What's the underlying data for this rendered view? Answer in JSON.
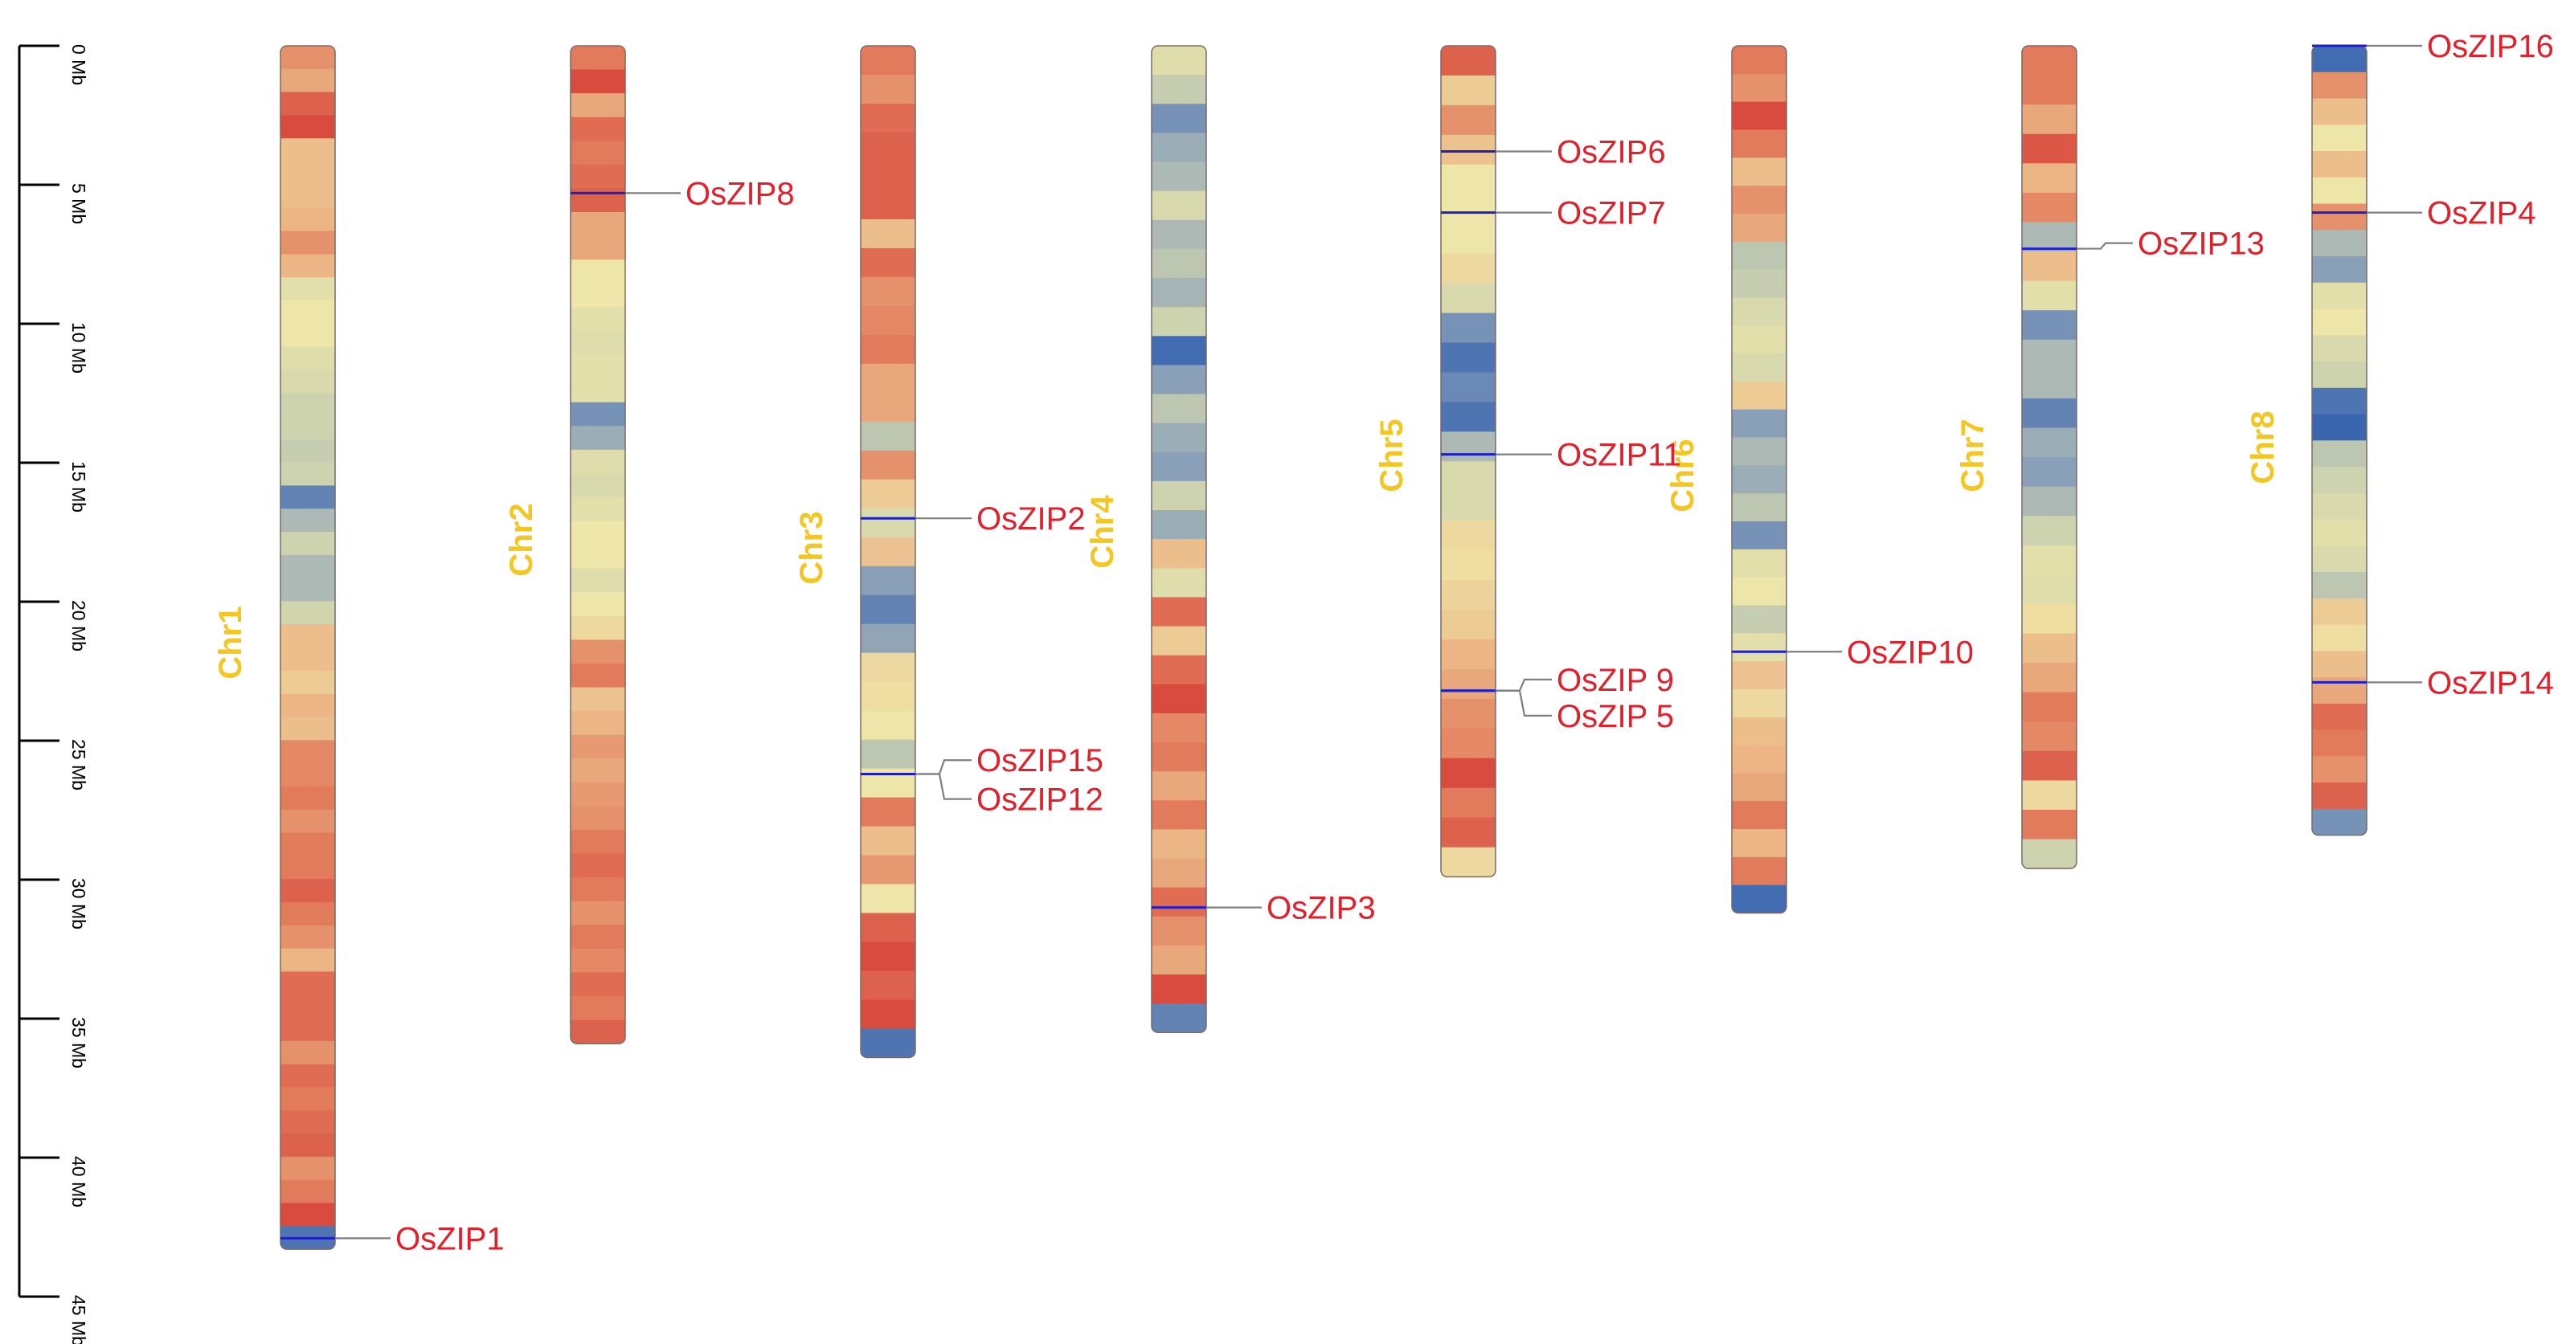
{
  "axis": {
    "unit": "Mb",
    "ticks": [
      {
        "value": 0,
        "label": "0 Mb"
      },
      {
        "value": 5,
        "label": "5 Mb"
      },
      {
        "value": 10,
        "label": "10 Mb"
      },
      {
        "value": 15,
        "label": "15 Mb"
      },
      {
        "value": 20,
        "label": "20 Mb"
      },
      {
        "value": 25,
        "label": "25 Mb"
      },
      {
        "value": 30,
        "label": "30 Mb"
      },
      {
        "value": 35,
        "label": "35 Mb"
      },
      {
        "value": 40,
        "label": "40 Mb"
      },
      {
        "value": 45,
        "label": "45 Mb"
      }
    ]
  },
  "colors": {
    "chromosome_label": "#F2C624",
    "gene_label": "#E0202A",
    "gene_marker": "#1F1FC8",
    "leader_line": "#7F7F7F",
    "axis": "#000000"
  },
  "chromosomes": [
    {
      "name": "Chr1",
      "length_mb": 43.3,
      "density": [
        0.8,
        0.75,
        0.9,
        0.95,
        0.7,
        0.7,
        0.7,
        0.72,
        0.8,
        0.72,
        0.5,
        0.55,
        0.55,
        0.48,
        0.45,
        0.4,
        0.4,
        0.38,
        0.4,
        0.1,
        0.3,
        0.4,
        0.3,
        0.3,
        0.42,
        0.7,
        0.7,
        0.65,
        0.72,
        0.7,
        0.82,
        0.82,
        0.85,
        0.8,
        0.85,
        0.85,
        0.9,
        0.85,
        0.8,
        0.72,
        0.88,
        0.88,
        0.88,
        0.8,
        0.88,
        0.85,
        0.88,
        0.9,
        0.8,
        0.85,
        0.95,
        0.05
      ]
    },
    {
      "name": "Chr2",
      "length_mb": 35.9,
      "density": [
        0.85,
        0.95,
        0.75,
        0.88,
        0.85,
        0.88,
        0.9,
        0.75,
        0.75,
        0.55,
        0.55,
        0.5,
        0.48,
        0.5,
        0.5,
        0.15,
        0.25,
        0.48,
        0.45,
        0.5,
        0.55,
        0.55,
        0.48,
        0.55,
        0.6,
        0.8,
        0.85,
        0.68,
        0.72,
        0.78,
        0.75,
        0.78,
        0.8,
        0.85,
        0.88,
        0.85,
        0.8,
        0.85,
        0.82,
        0.88,
        0.85,
        0.9
      ]
    },
    {
      "name": "Chr3",
      "length_mb": 36.4,
      "density": [
        0.85,
        0.8,
        0.88,
        0.9,
        0.9,
        0.9,
        0.7,
        0.88,
        0.8,
        0.82,
        0.85,
        0.75,
        0.75,
        0.35,
        0.8,
        0.65,
        0.45,
        0.68,
        0.2,
        0.1,
        0.22,
        0.6,
        0.58,
        0.55,
        0.35,
        0.55,
        0.85,
        0.7,
        0.78,
        0.55,
        0.9,
        0.95,
        0.9,
        0.95,
        0.05
      ]
    },
    {
      "name": "Chr4",
      "length_mb": 35.5,
      "density": [
        0.48,
        0.38,
        0.15,
        0.25,
        0.3,
        0.45,
        0.3,
        0.35,
        0.28,
        0.4,
        0.02,
        0.2,
        0.35,
        0.25,
        0.2,
        0.4,
        0.25,
        0.7,
        0.48,
        0.88,
        0.65,
        0.88,
        0.95,
        0.82,
        0.85,
        0.75,
        0.85,
        0.72,
        0.75,
        0.88,
        0.8,
        0.75,
        0.95,
        0.1
      ]
    },
    {
      "name": "Chr5",
      "length_mb": 29.9,
      "density": [
        0.9,
        0.65,
        0.8,
        0.68,
        0.55,
        0.55,
        0.55,
        0.6,
        0.45,
        0.15,
        0.05,
        0.12,
        0.05,
        0.3,
        0.45,
        0.45,
        0.6,
        0.58,
        0.62,
        0.65,
        0.72,
        0.75,
        0.8,
        0.82,
        0.95,
        0.85,
        0.9,
        0.6
      ]
    },
    {
      "name": "Chr6",
      "length_mb": 31.2,
      "density": [
        0.85,
        0.8,
        0.95,
        0.85,
        0.7,
        0.8,
        0.75,
        0.35,
        0.38,
        0.45,
        0.5,
        0.45,
        0.65,
        0.2,
        0.3,
        0.25,
        0.35,
        0.15,
        0.5,
        0.55,
        0.38,
        0.5,
        0.68,
        0.6,
        0.7,
        0.72,
        0.75,
        0.85,
        0.72,
        0.85,
        0.02
      ]
    },
    {
      "name": "Chr7",
      "length_mb": 29.6,
      "density": [
        0.85,
        0.85,
        0.75,
        0.92,
        0.72,
        0.82,
        0.3,
        0.7,
        0.5,
        0.15,
        0.3,
        0.3,
        0.1,
        0.25,
        0.2,
        0.3,
        0.4,
        0.5,
        0.48,
        0.58,
        0.7,
        0.75,
        0.85,
        0.82,
        0.9,
        0.6,
        0.85,
        0.4
      ]
    },
    {
      "name": "Chr8",
      "length_mb": 28.4,
      "density": [
        0.02,
        0.8,
        0.7,
        0.55,
        0.7,
        0.55,
        0.8,
        0.3,
        0.2,
        0.5,
        0.55,
        0.45,
        0.4,
        0.05,
        0.0,
        0.35,
        0.4,
        0.45,
        0.5,
        0.45,
        0.35,
        0.65,
        0.58,
        0.7,
        0.75,
        0.88,
        0.85,
        0.8,
        0.9,
        0.15
      ]
    }
  ],
  "genes": [
    {
      "name": "OsZIP1",
      "chr": "Chr1",
      "pos_mb": 42.9,
      "label_mb": 42.9
    },
    {
      "name": "OsZIP8",
      "chr": "Chr2",
      "pos_mb": 5.3,
      "label_mb": 5.3
    },
    {
      "name": "OsZIP2",
      "chr": "Chr3",
      "pos_mb": 17.0,
      "label_mb": 17.0
    },
    {
      "name": "OsZIP15",
      "chr": "Chr3",
      "pos_mb": 26.2,
      "label_mb": 25.7
    },
    {
      "name": "OsZIP12",
      "chr": "Chr3",
      "pos_mb": 26.2,
      "label_mb": 27.1
    },
    {
      "name": "OsZIP3",
      "chr": "Chr4",
      "pos_mb": 31.0,
      "label_mb": 31.0
    },
    {
      "name": "OsZIP6",
      "chr": "Chr5",
      "pos_mb": 3.8,
      "label_mb": 3.8
    },
    {
      "name": "OsZIP7",
      "chr": "Chr5",
      "pos_mb": 6.0,
      "label_mb": 6.0
    },
    {
      "name": "OsZIP11",
      "chr": "Chr5",
      "pos_mb": 14.7,
      "label_mb": 14.7
    },
    {
      "name": "OsZIP 9",
      "chr": "Chr5",
      "pos_mb": 23.2,
      "label_mb": 22.8
    },
    {
      "name": "OsZIP 5",
      "chr": "Chr5",
      "pos_mb": 23.2,
      "label_mb": 24.1
    },
    {
      "name": "OsZIP10",
      "chr": "Chr6",
      "pos_mb": 21.8,
      "label_mb": 21.8
    },
    {
      "name": "OsZIP13",
      "chr": "Chr7",
      "pos_mb": 7.3,
      "label_mb": 7.1
    },
    {
      "name": "OsZIP16",
      "chr": "Chr8",
      "pos_mb": 0.0,
      "label_mb": 0.0
    },
    {
      "name": "OsZIP4",
      "chr": "Chr8",
      "pos_mb": 6.0,
      "label_mb": 6.0
    },
    {
      "name": "OsZIP14",
      "chr": "Chr8",
      "pos_mb": 22.9,
      "label_mb": 22.9
    }
  ]
}
